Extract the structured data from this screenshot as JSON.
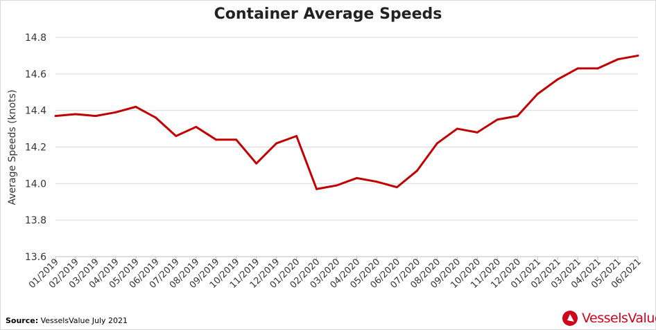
{
  "chart_data": {
    "type": "line",
    "title": "Container Average Speeds",
    "xlabel": "",
    "ylabel": "Average Speeds (knots)",
    "ylim": [
      13.6,
      14.8
    ],
    "yticks": [
      "13.6",
      "13.8",
      "14.0",
      "14.2",
      "14.4",
      "14.6",
      "14.8"
    ],
    "grid": true,
    "categories": [
      "01/2019",
      "02/2019",
      "03/2019",
      "04/2019",
      "05/2019",
      "06/2019",
      "07/2019",
      "08/2019",
      "09/2019",
      "10/2019",
      "11/2019",
      "12/2019",
      "01/2020",
      "02/2020",
      "03/2020",
      "04/2020",
      "05/2020",
      "06/2020",
      "07/2020",
      "08/2020",
      "09/2020",
      "10/2020",
      "11/2020",
      "12/2020",
      "01/2021",
      "02/2021",
      "03/2021",
      "04/2021",
      "05/2021",
      "06/2021"
    ],
    "series": [
      {
        "name": "Container Average Speed",
        "color": "#c00000",
        "values": [
          14.37,
          14.38,
          14.37,
          14.39,
          14.42,
          14.36,
          14.26,
          14.31,
          14.24,
          14.24,
          14.11,
          14.22,
          14.26,
          13.97,
          13.99,
          14.03,
          14.01,
          13.98,
          14.07,
          14.22,
          14.3,
          14.28,
          14.35,
          14.37,
          14.49,
          14.57,
          14.63,
          14.63,
          14.68,
          14.7
        ]
      }
    ]
  },
  "footer": {
    "source_label": "Source:",
    "source_text": " VesselsValue July 2021"
  },
  "logo": {
    "text": "VesselsValue",
    "color": "#d0021b"
  }
}
